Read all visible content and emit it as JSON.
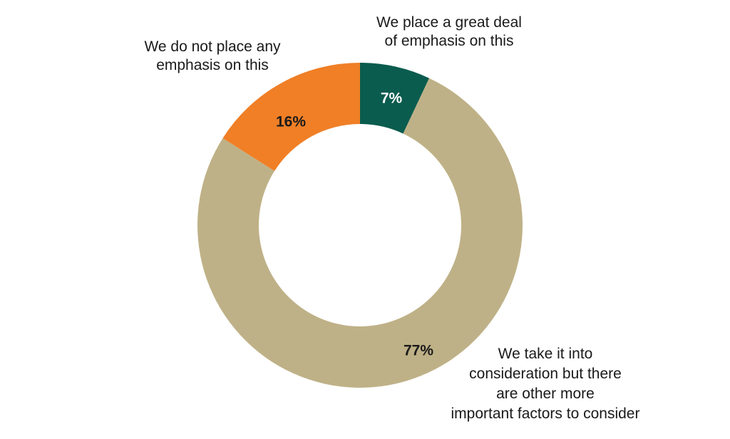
{
  "chart_data": {
    "type": "pie",
    "donut": true,
    "start": "12 o'clock, clockwise",
    "slices": [
      {
        "label_lines": [
          "We place a great deal",
          "of emphasis on this"
        ],
        "value": 7,
        "value_text": "7%",
        "color": "#0a5c4e",
        "value_text_color": "#ffffff"
      },
      {
        "label_lines": [
          "We take it into",
          "consideration but there",
          "are other more",
          "important factors to consider"
        ],
        "value": 77,
        "value_text": "77%",
        "color": "#bfb187",
        "value_text_color": "#1a1a1a"
      },
      {
        "label_lines": [
          "We do not place any",
          "emphasis on this"
        ],
        "value": 16,
        "value_text": "16%",
        "color": "#f07f26",
        "value_text_color": "#1a1a1a"
      }
    ]
  }
}
